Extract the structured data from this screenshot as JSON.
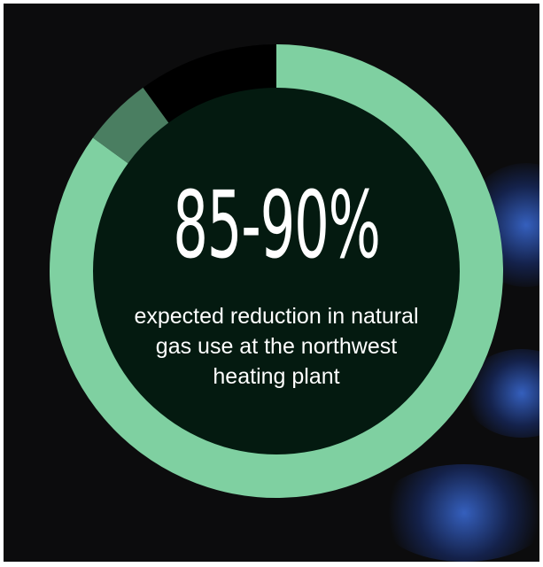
{
  "chart_data": {
    "type": "pie",
    "range_low_percent": 85,
    "range_high_percent": 90,
    "segments": [
      {
        "name": "reduction-low",
        "value": 85,
        "color": "#7fd0a1"
      },
      {
        "name": "reduction-range",
        "value": 5,
        "color": "#4a7e61"
      },
      {
        "name": "remaining",
        "value": 10,
        "color": "#000000"
      }
    ],
    "center_fill": "#041a10",
    "headline": "85-90%",
    "caption": "expected reduction in natural\ngas use at the northwest\nheating plant"
  },
  "colors": {
    "background": "#0c0c0d",
    "ring": "#7fd0a1",
    "flame_blue": "#3c6edc"
  }
}
